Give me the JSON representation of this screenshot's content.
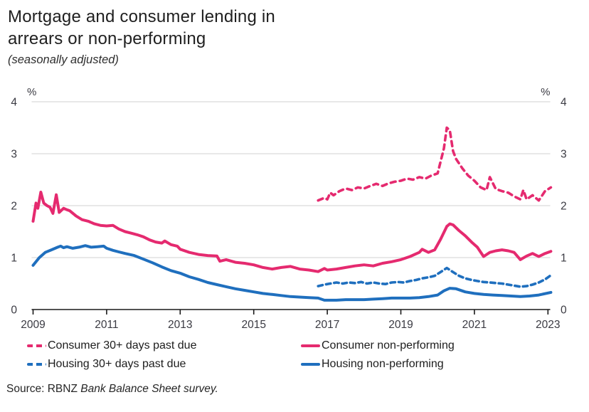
{
  "chart_data": {
    "type": "line",
    "title_lines": [
      "Mortgage and consumer lending in",
      "arrears or non-performing"
    ],
    "subtitle": "(seasonally adjusted)",
    "y_unit_label": "%",
    "ylim": [
      0,
      4
    ],
    "y_ticks": [
      0,
      1,
      2,
      3,
      4
    ],
    "x_ticks": [
      2009,
      2011,
      2013,
      2015,
      2017,
      2019,
      2021,
      2023
    ],
    "x_range": [
      2009,
      2023.1
    ],
    "grid": "horizontal",
    "legend_position": "bottom",
    "colors": {
      "pink": "#e52a6f",
      "blue": "#1f6fbe",
      "grid": "#d9d9d9",
      "axis": "#1a1a1a",
      "tick_text": "#3a3a42"
    },
    "series": [
      {
        "id": "consumer-30-days-past-due",
        "name": "Consumer 30+ days past due",
        "color": "#e52a6f",
        "dash": "7 6",
        "width": 3.6,
        "x": [
          2016.75,
          2016.92,
          2017.0,
          2017.08,
          2017.17,
          2017.33,
          2017.5,
          2017.67,
          2017.83,
          2018.0,
          2018.17,
          2018.33,
          2018.5,
          2018.67,
          2018.83,
          2019.0,
          2019.17,
          2019.33,
          2019.5,
          2019.67,
          2019.83,
          2020.0,
          2020.17,
          2020.25,
          2020.33,
          2020.42,
          2020.5,
          2020.67,
          2020.83,
          2021.0,
          2021.17,
          2021.33,
          2021.42,
          2021.58,
          2021.75,
          2021.92,
          2022.08,
          2022.25,
          2022.33,
          2022.42,
          2022.58,
          2022.75,
          2022.92,
          2023.08
        ],
        "y": [
          2.1,
          2.15,
          2.12,
          2.25,
          2.2,
          2.28,
          2.33,
          2.3,
          2.35,
          2.33,
          2.38,
          2.42,
          2.38,
          2.43,
          2.46,
          2.48,
          2.52,
          2.5,
          2.55,
          2.52,
          2.58,
          2.62,
          3.1,
          3.5,
          3.45,
          3.05,
          2.9,
          2.72,
          2.58,
          2.48,
          2.35,
          2.3,
          2.55,
          2.32,
          2.28,
          2.25,
          2.18,
          2.12,
          2.3,
          2.12,
          2.2,
          2.1,
          2.28,
          2.35
        ]
      },
      {
        "id": "consumer-non-performing",
        "name": "Consumer non-performing",
        "color": "#e52a6f",
        "dash": null,
        "width": 4,
        "x": [
          2009.0,
          2009.08,
          2009.13,
          2009.21,
          2009.29,
          2009.38,
          2009.46,
          2009.54,
          2009.63,
          2009.71,
          2009.83,
          2009.92,
          2010.0,
          2010.17,
          2010.33,
          2010.5,
          2010.67,
          2010.83,
          2011.0,
          2011.17,
          2011.33,
          2011.5,
          2011.67,
          2011.83,
          2012.0,
          2012.17,
          2012.33,
          2012.5,
          2012.58,
          2012.75,
          2012.92,
          2013.0,
          2013.25,
          2013.5,
          2013.75,
          2014.0,
          2014.08,
          2014.25,
          2014.5,
          2014.75,
          2015.0,
          2015.25,
          2015.5,
          2015.75,
          2016.0,
          2016.25,
          2016.5,
          2016.75,
          2016.92,
          2017.0,
          2017.25,
          2017.5,
          2017.75,
          2018.0,
          2018.25,
          2018.5,
          2018.75,
          2019.0,
          2019.25,
          2019.5,
          2019.58,
          2019.75,
          2019.92,
          2020.08,
          2020.25,
          2020.33,
          2020.42,
          2020.58,
          2020.75,
          2020.92,
          2021.08,
          2021.25,
          2021.42,
          2021.58,
          2021.75,
          2021.92,
          2022.08,
          2022.25,
          2022.42,
          2022.58,
          2022.75,
          2022.92,
          2023.08
        ],
        "y": [
          1.7,
          2.05,
          1.95,
          2.26,
          2.05,
          2.0,
          1.97,
          1.85,
          2.21,
          1.87,
          1.95,
          1.92,
          1.9,
          1.8,
          1.73,
          1.7,
          1.65,
          1.62,
          1.61,
          1.62,
          1.55,
          1.5,
          1.47,
          1.44,
          1.4,
          1.34,
          1.3,
          1.28,
          1.32,
          1.25,
          1.22,
          1.16,
          1.1,
          1.06,
          1.04,
          1.03,
          0.93,
          0.96,
          0.91,
          0.89,
          0.86,
          0.81,
          0.78,
          0.81,
          0.83,
          0.78,
          0.76,
          0.73,
          0.79,
          0.76,
          0.78,
          0.81,
          0.84,
          0.86,
          0.84,
          0.89,
          0.92,
          0.96,
          1.02,
          1.1,
          1.16,
          1.1,
          1.15,
          1.35,
          1.6,
          1.65,
          1.63,
          1.52,
          1.42,
          1.3,
          1.2,
          1.02,
          1.1,
          1.13,
          1.15,
          1.13,
          1.1,
          0.96,
          1.03,
          1.08,
          1.02,
          1.08,
          1.12
        ]
      },
      {
        "id": "housing-30-days-past-due",
        "name": "Housing 30+ days past due",
        "color": "#1f6fbe",
        "dash": "6.5 5",
        "width": 3.6,
        "x": [
          2016.75,
          2016.92,
          2017.08,
          2017.25,
          2017.42,
          2017.58,
          2017.75,
          2017.92,
          2018.08,
          2018.25,
          2018.42,
          2018.58,
          2018.75,
          2018.92,
          2019.08,
          2019.25,
          2019.42,
          2019.58,
          2019.75,
          2019.92,
          2020.08,
          2020.25,
          2020.42,
          2020.58,
          2020.75,
          2020.92,
          2021.08,
          2021.25,
          2021.42,
          2021.58,
          2021.75,
          2021.92,
          2022.08,
          2022.25,
          2022.42,
          2022.58,
          2022.75,
          2022.92,
          2023.08
        ],
        "y": [
          0.45,
          0.48,
          0.5,
          0.52,
          0.5,
          0.52,
          0.51,
          0.53,
          0.5,
          0.52,
          0.5,
          0.49,
          0.52,
          0.53,
          0.52,
          0.55,
          0.57,
          0.6,
          0.62,
          0.65,
          0.72,
          0.8,
          0.72,
          0.65,
          0.6,
          0.57,
          0.55,
          0.53,
          0.52,
          0.51,
          0.5,
          0.48,
          0.46,
          0.44,
          0.45,
          0.48,
          0.52,
          0.58,
          0.66
        ]
      },
      {
        "id": "housing-non-performing",
        "name": "Housing non-performing",
        "color": "#1f6fbe",
        "dash": null,
        "width": 4,
        "x": [
          2009.0,
          2009.17,
          2009.33,
          2009.5,
          2009.67,
          2009.75,
          2009.83,
          2009.92,
          2010.08,
          2010.25,
          2010.42,
          2010.58,
          2010.75,
          2010.92,
          2011.0,
          2011.17,
          2011.33,
          2011.5,
          2011.75,
          2012.0,
          2012.25,
          2012.5,
          2012.75,
          2013.0,
          2013.25,
          2013.5,
          2013.75,
          2014.0,
          2014.25,
          2014.5,
          2014.75,
          2015.0,
          2015.25,
          2015.5,
          2015.75,
          2016.0,
          2016.25,
          2016.5,
          2016.75,
          2016.92,
          2017.25,
          2017.5,
          2017.75,
          2018.0,
          2018.25,
          2018.5,
          2018.75,
          2019.0,
          2019.25,
          2019.5,
          2019.75,
          2020.0,
          2020.17,
          2020.33,
          2020.5,
          2020.75,
          2021.0,
          2021.25,
          2021.5,
          2021.75,
          2022.0,
          2022.25,
          2022.5,
          2022.75,
          2023.08
        ],
        "y": [
          0.85,
          1.0,
          1.1,
          1.15,
          1.2,
          1.22,
          1.19,
          1.21,
          1.18,
          1.2,
          1.23,
          1.2,
          1.21,
          1.22,
          1.18,
          1.14,
          1.11,
          1.08,
          1.04,
          0.97,
          0.9,
          0.82,
          0.75,
          0.7,
          0.63,
          0.58,
          0.52,
          0.48,
          0.44,
          0.4,
          0.37,
          0.34,
          0.31,
          0.29,
          0.27,
          0.25,
          0.24,
          0.23,
          0.22,
          0.18,
          0.18,
          0.19,
          0.19,
          0.19,
          0.2,
          0.21,
          0.22,
          0.22,
          0.22,
          0.23,
          0.25,
          0.28,
          0.36,
          0.41,
          0.4,
          0.34,
          0.31,
          0.29,
          0.28,
          0.27,
          0.26,
          0.25,
          0.26,
          0.28,
          0.33
        ]
      }
    ]
  },
  "source": {
    "prefix": "Source: RBNZ ",
    "italic": "Bank Balance Sheet survey."
  }
}
